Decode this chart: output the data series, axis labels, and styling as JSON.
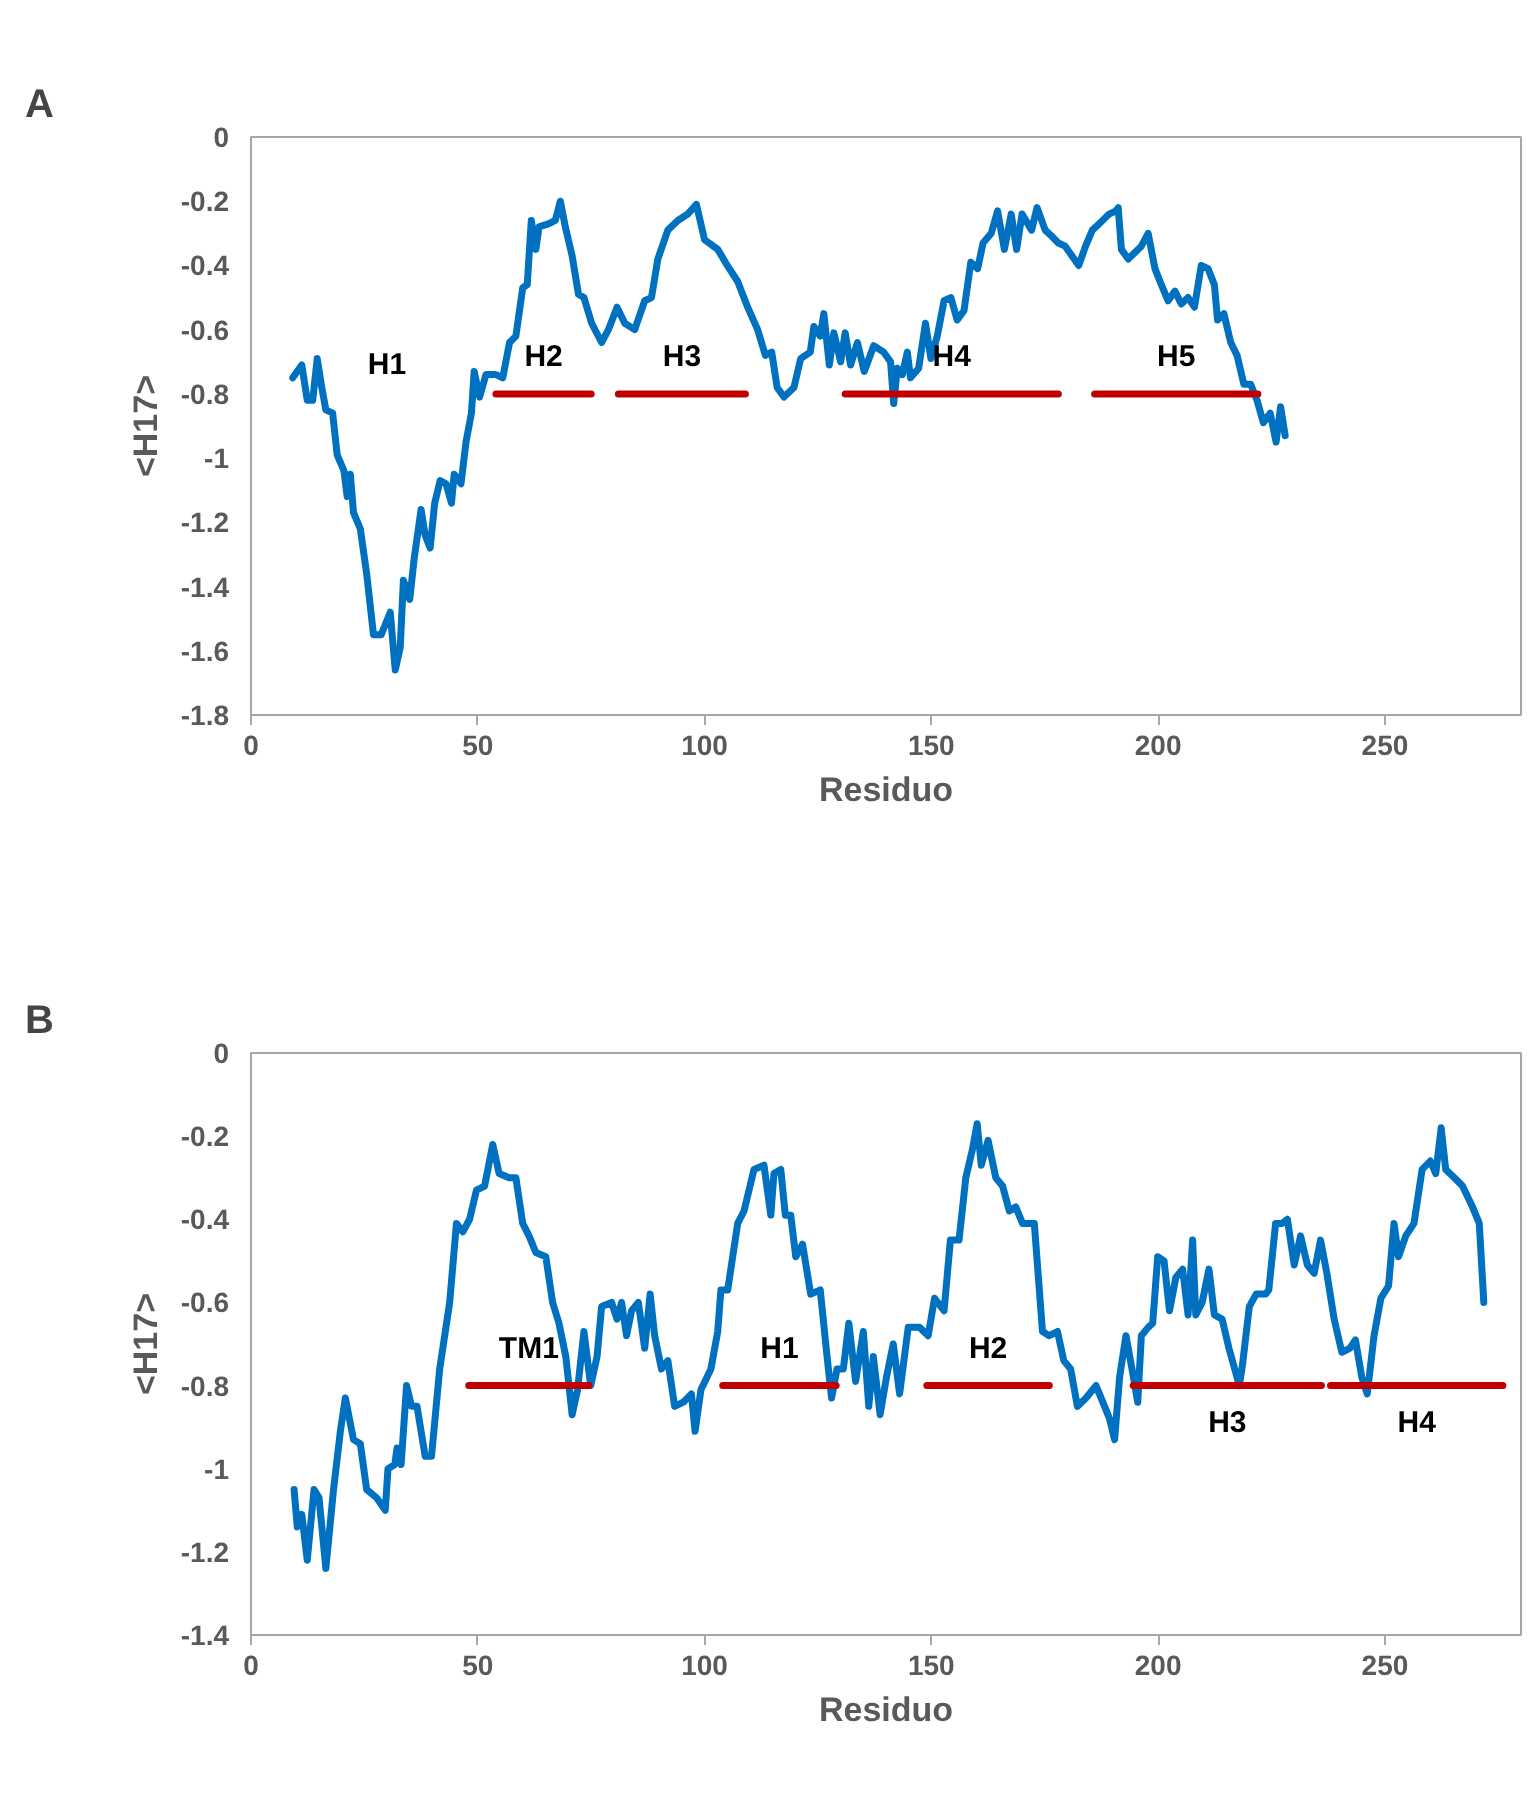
{
  "chart_data": [
    {
      "type": "line",
      "title": "A",
      "xlabel": "Residuo",
      "ylabel": "<H17>",
      "xlim": [
        0,
        280
      ],
      "xticks": [
        0,
        50,
        100,
        150,
        200,
        250
      ],
      "ylim": [
        -1.8,
        0
      ],
      "yticks": [
        -1.8,
        -1.6,
        -1.4,
        -1.2,
        -1,
        -0.8,
        -0.6,
        -0.4,
        -0.2,
        0
      ],
      "grid": false,
      "legend": false,
      "marker": "none",
      "line_style": "solid",
      "series": [
        {
          "color": "#0070c0",
          "x": [
            9.2,
            11.2,
            12.4,
            13.6,
            14.6,
            15.6,
            16.5,
            18,
            19,
            20.5,
            21.2,
            21.9,
            22.6,
            24.1,
            25.5,
            27,
            28.7,
            30.7,
            31.8,
            32.9,
            33.6,
            35,
            36,
            37.5,
            38.4,
            39.5,
            40.5,
            41.7,
            43,
            44.2,
            44.8,
            46.3,
            47.4,
            48.6,
            49.2,
            50.4,
            51.8,
            54,
            55.5,
            57,
            58.4,
            59.9,
            60.9,
            61.8,
            62.8,
            63.5,
            65.7,
            67.1,
            68.2,
            69.3,
            70.8,
            72.2,
            73.4,
            75.1,
            77.3,
            78.8,
            80.7,
            82.4,
            84.6,
            86.8,
            88.3,
            89.7,
            91.9,
            94.1,
            96.3,
            98.2,
            100,
            102.9,
            105,
            107.3,
            109.5,
            111.7,
            113.4,
            114.8,
            116,
            117.5,
            119.7,
            121.2,
            123.3,
            124.1,
            125.5,
            126.3,
            127.5,
            128.5,
            130,
            131,
            132.2,
            133.7,
            135.2,
            137.3,
            139.5,
            141,
            141.7,
            142.5,
            143.6,
            144.7,
            145.4,
            147.2,
            148.7,
            149.9,
            151.3,
            152.8,
            154.3,
            155.7,
            157.2,
            158.7,
            160.2,
            161.4,
            163.2,
            164.6,
            166.1,
            167.6,
            168.8,
            170,
            172.1,
            173.3,
            175.1,
            176.6,
            178,
            179.5,
            182.5,
            184,
            185.5,
            187,
            189.2,
            190.7,
            191.2,
            191.9,
            193.4,
            196.3,
            197.8,
            199.3,
            200.7,
            202.2,
            203.7,
            205.1,
            206.6,
            208,
            209.5,
            211,
            212.4,
            213.1,
            214.5,
            216,
            217.4,
            218.9,
            220.4,
            221.8,
            223.2,
            224.7,
            226,
            227,
            228
          ],
          "values": [
            -0.75,
            -0.71,
            -0.82,
            -0.82,
            -0.69,
            -0.78,
            -0.85,
            -0.86,
            -0.99,
            -1.04,
            -1.12,
            -1.05,
            -1.17,
            -1.22,
            -1.36,
            -1.55,
            -1.55,
            -1.48,
            -1.66,
            -1.59,
            -1.38,
            -1.44,
            -1.31,
            -1.16,
            -1.24,
            -1.28,
            -1.14,
            -1.07,
            -1.08,
            -1.14,
            -1.05,
            -1.08,
            -0.95,
            -0.86,
            -0.73,
            -0.81,
            -0.74,
            -0.74,
            -0.75,
            -0.64,
            -0.62,
            -0.47,
            -0.46,
            -0.26,
            -0.35,
            -0.28,
            -0.27,
            -0.26,
            -0.2,
            -0.28,
            -0.37,
            -0.49,
            -0.5,
            -0.58,
            -0.64,
            -0.6,
            -0.53,
            -0.58,
            -0.6,
            -0.51,
            -0.5,
            -0.38,
            -0.29,
            -0.26,
            -0.24,
            -0.21,
            -0.32,
            -0.35,
            -0.4,
            -0.45,
            -0.53,
            -0.6,
            -0.68,
            -0.67,
            -0.78,
            -0.81,
            -0.78,
            -0.69,
            -0.67,
            -0.59,
            -0.62,
            -0.55,
            -0.71,
            -0.61,
            -0.7,
            -0.61,
            -0.71,
            -0.64,
            -0.73,
            -0.65,
            -0.67,
            -0.7,
            -0.83,
            -0.72,
            -0.74,
            -0.67,
            -0.75,
            -0.72,
            -0.58,
            -0.69,
            -0.62,
            -0.51,
            -0.5,
            -0.57,
            -0.54,
            -0.39,
            -0.41,
            -0.33,
            -0.3,
            -0.23,
            -0.35,
            -0.24,
            -0.35,
            -0.24,
            -0.29,
            -0.22,
            -0.29,
            -0.31,
            -0.33,
            -0.34,
            -0.4,
            -0.34,
            -0.29,
            -0.27,
            -0.24,
            -0.23,
            -0.22,
            -0.35,
            -0.38,
            -0.34,
            -0.3,
            -0.41,
            -0.46,
            -0.51,
            -0.48,
            -0.52,
            -0.5,
            -0.53,
            -0.4,
            -0.41,
            -0.46,
            -0.57,
            -0.55,
            -0.64,
            -0.68,
            -0.77,
            -0.77,
            -0.82,
            -0.89,
            -0.86,
            -0.95,
            -0.84,
            -0.93
          ]
        },
        {
          "name": "H2",
          "color": "#c00000",
          "x": [
            54,
            75
          ],
          "values": [
            -0.8,
            -0.8
          ]
        },
        {
          "name": "H3",
          "color": "#c00000",
          "x": [
            81,
            109
          ],
          "values": [
            -0.8,
            -0.8
          ]
        },
        {
          "name": "H4",
          "color": "#c00000",
          "x": [
            131,
            178
          ],
          "values": [
            -0.8,
            -0.8
          ]
        },
        {
          "name": "H5",
          "color": "#c00000",
          "x": [
            186,
            222
          ],
          "values": [
            -0.8,
            -0.8
          ]
        }
      ],
      "annotations": [
        "H1"
      ]
    },
    {
      "type": "line",
      "title": "B",
      "xlabel": "Residuo",
      "ylabel": "<H17>",
      "xlim": [
        0,
        280
      ],
      "xticks": [
        0,
        50,
        100,
        150,
        200,
        250
      ],
      "ylim": [
        -1.4,
        0
      ],
      "yticks": [
        -1.4,
        -1.2,
        -1,
        -0.8,
        -0.6,
        -0.4,
        -0.2,
        0
      ],
      "grid": false,
      "legend": false,
      "marker": "none",
      "line_style": "solid",
      "series": [
        {
          "color": "#0070c0",
          "x": [
            9.5,
            10.2,
            11.2,
            12.4,
            13.9,
            15,
            16.5,
            18.2,
            19.7,
            20.8,
            22.6,
            24.1,
            25.5,
            27.7,
            29.6,
            30.2,
            31.7,
            32.2,
            33.1,
            34.3,
            35.4,
            36.6,
            38.4,
            39.8,
            41.6,
            43.8,
            45.3,
            46.7,
            48.2,
            49.7,
            51.5,
            53.3,
            54.7,
            56.9,
            58.4,
            59.9,
            61.3,
            62.8,
            65,
            66.5,
            67.9,
            69.4,
            70.8,
            72,
            73.4,
            74.9,
            76.3,
            77.3,
            79.5,
            80.7,
            81.7,
            82.8,
            83.9,
            85.4,
            86.8,
            88,
            89,
            90.5,
            91.9,
            93.4,
            95.3,
            97.1,
            97.9,
            99.2,
            101.4,
            102.9,
            103.6,
            105.1,
            107.3,
            108.7,
            110.9,
            113.1,
            114.6,
            115.3,
            116.8,
            117.8,
            119,
            120.1,
            121.6,
            123.4,
            125.5,
            127,
            128,
            129.2,
            130.6,
            131.8,
            133.3,
            135,
            136.2,
            137.2,
            138.7,
            140.1,
            141.6,
            143,
            144.9,
            147.4,
            149.3,
            150.7,
            152.8,
            154.2,
            156.1,
            157.6,
            159.1,
            160.1,
            161,
            162.5,
            164.2,
            165.7,
            167.2,
            168.6,
            170.1,
            172.7,
            174.5,
            176,
            177.8,
            179.2,
            180.7,
            182.2,
            184.1,
            186.3,
            187.8,
            189.3,
            190.4,
            191.5,
            192.9,
            194.4,
            195.5,
            196.3,
            197.8,
            198.8,
            199.9,
            201.3,
            202.5,
            203.9,
            205.4,
            206.6,
            207.6,
            208.3,
            209.7,
            211.2,
            212.4,
            214.1,
            215.6,
            217.9,
            218.6,
            220.1,
            221.6,
            223.7,
            224.4,
            225.9,
            227.3,
            228.5,
            230,
            231.4,
            232.9,
            234.4,
            235.8,
            237.2,
            238.8,
            240.5,
            242.3,
            243.5,
            244.9,
            246.1,
            247.6,
            249.1,
            250.8,
            252,
            253,
            254.6,
            256.4,
            258.2,
            260,
            261.2,
            262.4,
            263.4,
            265.3,
            267.1,
            269.3,
            270.8,
            271.8
          ],
          "values": [
            -1.05,
            -1.14,
            -1.11,
            -1.22,
            -1.05,
            -1.07,
            -1.24,
            -1.05,
            -0.91,
            -0.83,
            -0.93,
            -0.94,
            -1.05,
            -1.07,
            -1.1,
            -1,
            -0.99,
            -0.95,
            -0.99,
            -0.8,
            -0.85,
            -0.85,
            -0.97,
            -0.97,
            -0.76,
            -0.6,
            -0.41,
            -0.43,
            -0.4,
            -0.33,
            -0.32,
            -0.22,
            -0.29,
            -0.3,
            -0.3,
            -0.41,
            -0.44,
            -0.48,
            -0.49,
            -0.6,
            -0.65,
            -0.73,
            -0.87,
            -0.81,
            -0.67,
            -0.8,
            -0.73,
            -0.61,
            -0.6,
            -0.64,
            -0.6,
            -0.68,
            -0.62,
            -0.6,
            -0.71,
            -0.58,
            -0.68,
            -0.76,
            -0.74,
            -0.85,
            -0.84,
            -0.82,
            -0.91,
            -0.81,
            -0.76,
            -0.67,
            -0.57,
            -0.57,
            -0.41,
            -0.38,
            -0.28,
            -0.27,
            -0.39,
            -0.29,
            -0.28,
            -0.39,
            -0.39,
            -0.49,
            -0.46,
            -0.58,
            -0.57,
            -0.73,
            -0.83,
            -0.76,
            -0.76,
            -0.65,
            -0.79,
            -0.67,
            -0.85,
            -0.73,
            -0.87,
            -0.78,
            -0.7,
            -0.82,
            -0.66,
            -0.66,
            -0.68,
            -0.59,
            -0.62,
            -0.45,
            -0.45,
            -0.3,
            -0.23,
            -0.17,
            -0.27,
            -0.21,
            -0.3,
            -0.32,
            -0.38,
            -0.37,
            -0.41,
            -0.41,
            -0.67,
            -0.68,
            -0.67,
            -0.74,
            -0.76,
            -0.85,
            -0.83,
            -0.8,
            -0.84,
            -0.88,
            -0.93,
            -0.78,
            -0.68,
            -0.77,
            -0.84,
            -0.68,
            -0.66,
            -0.65,
            -0.49,
            -0.5,
            -0.62,
            -0.54,
            -0.52,
            -0.63,
            -0.45,
            -0.63,
            -0.6,
            -0.52,
            -0.63,
            -0.64,
            -0.71,
            -0.8,
            -0.75,
            -0.61,
            -0.58,
            -0.58,
            -0.57,
            -0.41,
            -0.41,
            -0.4,
            -0.51,
            -0.44,
            -0.51,
            -0.53,
            -0.45,
            -0.53,
            -0.64,
            -0.72,
            -0.71,
            -0.69,
            -0.78,
            -0.82,
            -0.68,
            -0.59,
            -0.56,
            -0.41,
            -0.49,
            -0.44,
            -0.41,
            -0.28,
            -0.26,
            -0.29,
            -0.18,
            -0.28,
            -0.3,
            -0.32,
            -0.37,
            -0.41,
            -0.6
          ]
        },
        {
          "name": "TM1",
          "color": "#c00000",
          "x": [
            48,
            74.5
          ],
          "values": [
            -0.8,
            -0.8
          ]
        },
        {
          "name": "H1",
          "color": "#c00000",
          "x": [
            104,
            129
          ],
          "values": [
            -0.8,
            -0.8
          ]
        },
        {
          "name": "H2",
          "color": "#c00000",
          "x": [
            149,
            176
          ],
          "values": [
            -0.8,
            -0.8
          ]
        },
        {
          "name": "H3",
          "color": "#c00000",
          "x": [
            194.5,
            236
          ],
          "values": [
            -0.8,
            -0.8
          ]
        },
        {
          "name": "H4",
          "color": "#c00000",
          "x": [
            238,
            276
          ],
          "values": [
            -0.8,
            -0.8
          ]
        }
      ]
    }
  ]
}
